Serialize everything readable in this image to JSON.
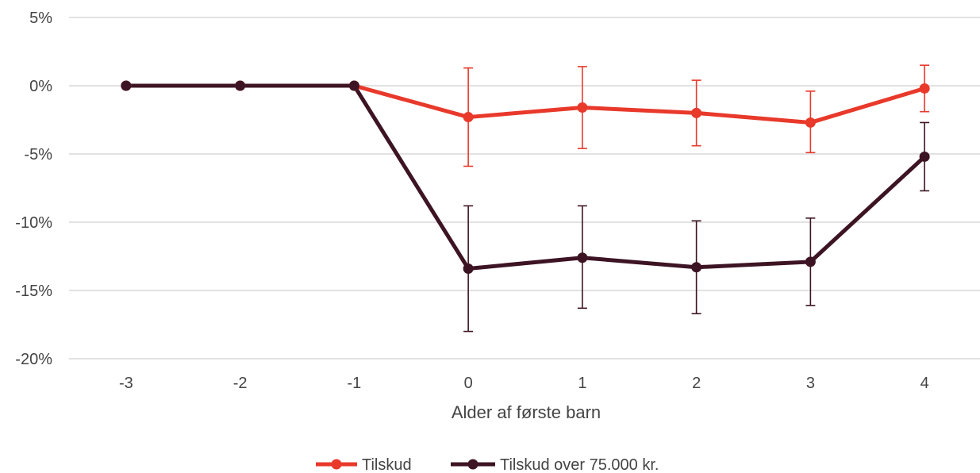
{
  "chart_data": {
    "type": "line",
    "title": "",
    "xlabel": "Alder af første barn",
    "ylabel": "",
    "x": [
      -3,
      -2,
      -1,
      0,
      1,
      2,
      3,
      4
    ],
    "x_tick_labels": [
      "-3",
      "-2",
      "-1",
      "0",
      "1",
      "2",
      "3",
      "4"
    ],
    "y_ticks": [
      5,
      0,
      -5,
      -10,
      -15,
      -20
    ],
    "y_tick_labels": [
      "5%",
      "0%",
      "-5%",
      "-10%",
      "-15%",
      "-20%"
    ],
    "ylim": [
      -20,
      5
    ],
    "y_unit": "%",
    "grid": "horizontal",
    "legend_position": "bottom",
    "series": [
      {
        "name": "Tilskud",
        "color": "#e8392b",
        "values": [
          0,
          0,
          0,
          -2.3,
          -1.6,
          -2.0,
          -2.7,
          -0.2
        ],
        "error_lower": [
          null,
          null,
          null,
          -5.9,
          -4.6,
          -4.4,
          -4.9,
          -1.9
        ],
        "error_upper": [
          null,
          null,
          null,
          1.3,
          1.4,
          0.4,
          -0.4,
          1.5
        ]
      },
      {
        "name": "Tilskud over 75.000 kr.",
        "color": "#3d1423",
        "values": [
          0,
          0,
          0,
          -13.4,
          -12.6,
          -13.3,
          -12.9,
          -5.2
        ],
        "error_lower": [
          null,
          null,
          null,
          -18.0,
          -16.3,
          -16.7,
          -16.1,
          -7.7
        ],
        "error_upper": [
          null,
          null,
          null,
          -8.8,
          -8.8,
          -9.9,
          -9.7,
          -2.7
        ]
      }
    ]
  }
}
